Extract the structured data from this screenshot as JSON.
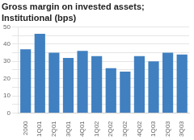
{
  "chart_data": {
    "type": "bar",
    "title": "Gross margin on invested assets;",
    "subtitle": "Institutional (bps)",
    "categories": [
      "2000",
      "1Q01",
      "2Q01",
      "3Q01",
      "4Q01",
      "1Q02",
      "2Q02",
      "3Q02",
      "4Q02",
      "1Q03",
      "2Q03",
      "3Q03"
    ],
    "values": [
      37,
      46,
      35,
      32,
      36,
      33,
      26,
      24,
      33,
      30,
      35,
      34
    ],
    "color": "#4080c0",
    "ylim": [
      0,
      50
    ],
    "yticks": [
      0,
      {
        "value": 5,
        "label": ""
      },
      10,
      {
        "value": 15,
        "label": ""
      },
      20,
      {
        "value": 25,
        "label": ""
      },
      30,
      {
        "value": 35,
        "label": ""
      },
      40,
      {
        "value": 45,
        "label": ""
      },
      50
    ],
    "grid": true
  }
}
